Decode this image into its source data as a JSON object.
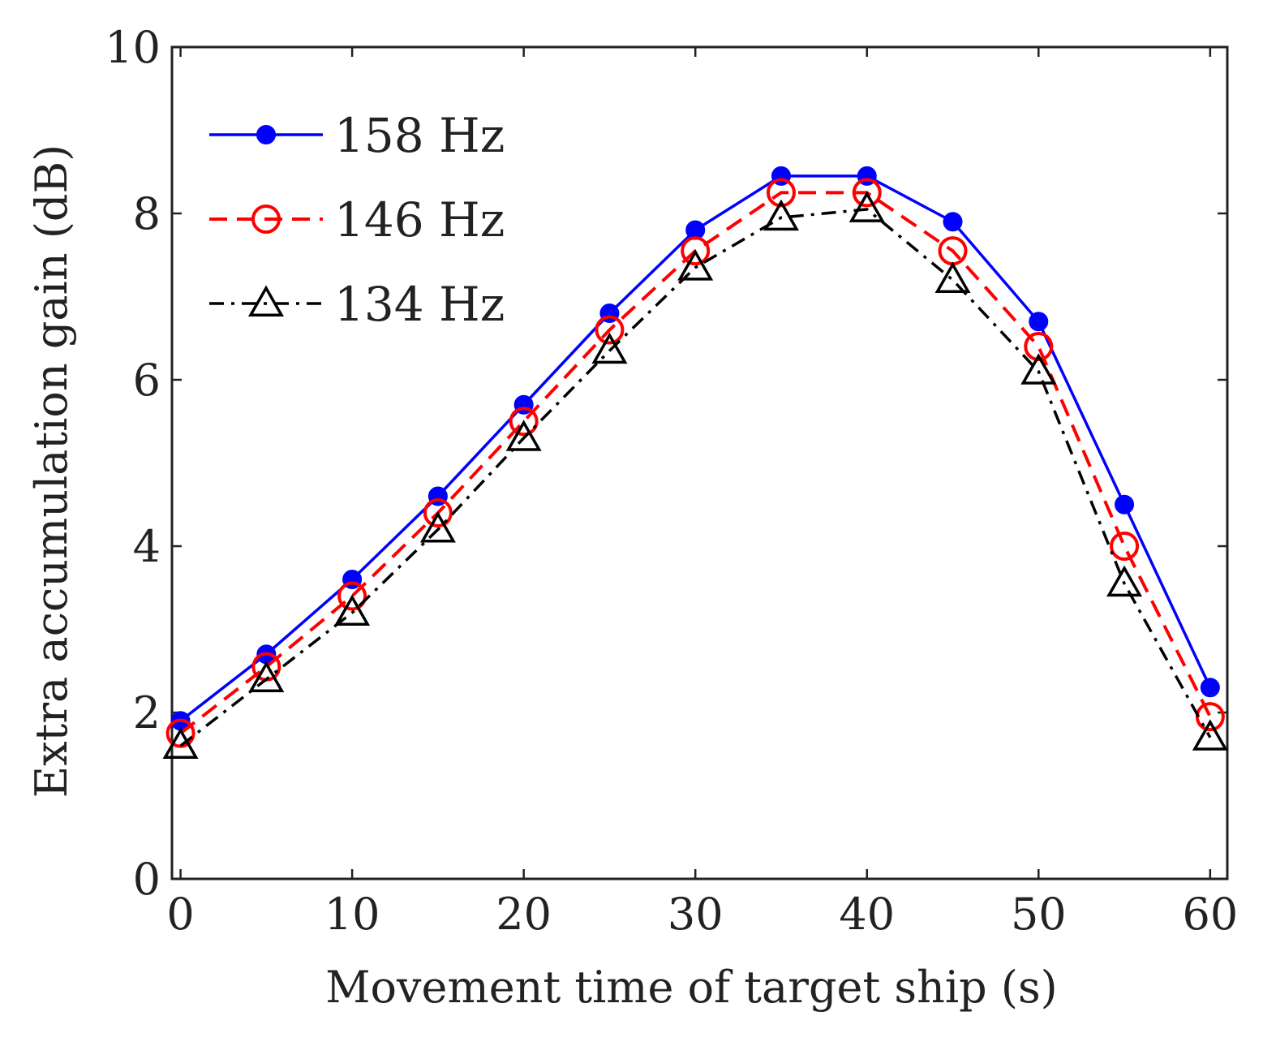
{
  "chart_data": {
    "type": "line",
    "title": "",
    "xlabel": "Movement time of target ship (s)",
    "ylabel": "Extra accumulation gain (dB)",
    "xlim": [
      -0.5,
      61
    ],
    "ylim": [
      0,
      10
    ],
    "xticks": [
      0,
      10,
      20,
      30,
      40,
      50,
      60
    ],
    "yticks": [
      0,
      2,
      4,
      6,
      8,
      10
    ],
    "x": [
      0,
      5,
      10,
      15,
      20,
      25,
      30,
      35,
      40,
      45,
      50,
      55,
      60
    ],
    "legend_position": "top-left",
    "grid": false,
    "series": [
      {
        "name": "158 Hz",
        "color": "#0000ff",
        "line_style": "solid",
        "marker": "filled-circle",
        "values": [
          1.9,
          2.7,
          3.6,
          4.6,
          5.7,
          6.8,
          7.8,
          8.45,
          8.45,
          7.9,
          6.7,
          4.5,
          2.3
        ]
      },
      {
        "name": "146 Hz",
        "color": "#ff0000",
        "line_style": "dashed",
        "marker": "open-circle",
        "values": [
          1.75,
          2.55,
          3.4,
          4.4,
          5.5,
          6.6,
          7.55,
          8.25,
          8.25,
          7.55,
          6.4,
          4.0,
          1.95
        ]
      },
      {
        "name": "134 Hz",
        "color": "#000000",
        "line_style": "dash-dot",
        "marker": "open-triangle",
        "values": [
          1.6,
          2.4,
          3.2,
          4.2,
          5.3,
          6.35,
          7.35,
          7.95,
          8.05,
          7.2,
          6.1,
          3.55,
          1.7
        ]
      }
    ]
  }
}
